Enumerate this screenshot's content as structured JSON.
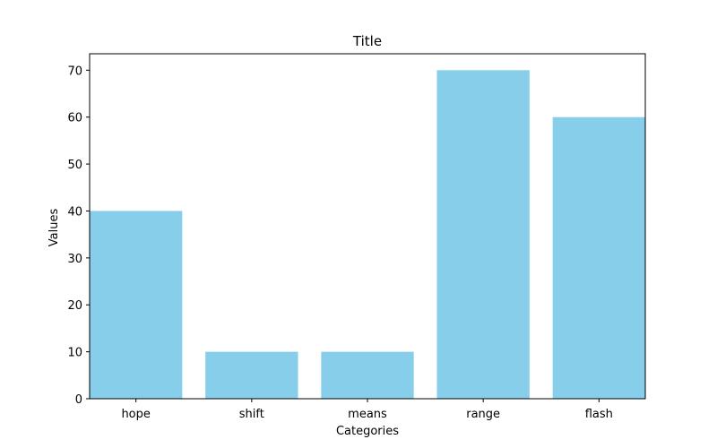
{
  "chart_data": {
    "type": "bar",
    "title": "Title",
    "xlabel": "Categories",
    "ylabel": "Values",
    "categories": [
      "hope",
      "shift",
      "means",
      "range",
      "flash"
    ],
    "values": [
      40,
      10,
      10,
      70,
      60
    ],
    "ylim": [
      0,
      73.5
    ],
    "yticks": [
      0,
      10,
      20,
      30,
      40,
      50,
      60,
      70
    ],
    "grid": false,
    "bar_color": "#87ceeb",
    "axis_color": "#000000"
  }
}
